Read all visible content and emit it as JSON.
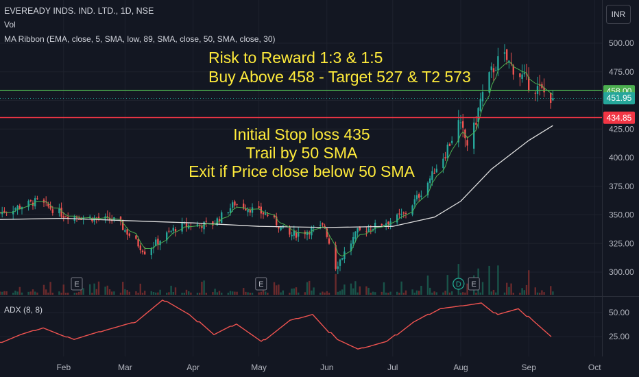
{
  "header": {
    "symbol": "EVEREADY INDS. IND. LTD., 1D, NSE",
    "vol": "Vol",
    "ma_ribbon": "MA Ribbon (EMA, close, 5, SMA, low, 89, SMA, close, 50, SMA, close, 30)",
    "adx": "ADX (8, 8)",
    "currency": "INR"
  },
  "annotations": {
    "line1": "Risk to Reward 1:3 & 1:5",
    "line2": "Buy Above 458 - Target 527 & T2 573",
    "line3": "Initial Stop loss 435",
    "line4": "Trail by 50 SMA",
    "line5": "Exit if Price close below 50 SMA"
  },
  "colors": {
    "background": "#131722",
    "up": "#26a69a",
    "down": "#ef5350",
    "buy_line": "#4caf50",
    "stop_line": "#f23645",
    "sma_line": "#e0e0e0",
    "ema_line": "#4caf50",
    "annotation": "#ffeb3b"
  },
  "chart_data": {
    "type": "candlestick",
    "price_axis": {
      "ticks": [
        300,
        325,
        350,
        375,
        400,
        425,
        450,
        475,
        500
      ],
      "tick_labels": [
        "300.00",
        "325.00",
        "350.00",
        "375.00",
        "400.00",
        "425.00",
        "450.00",
        "475.00",
        "500.00"
      ]
    },
    "x_axis": {
      "ticks": [
        "Feb",
        "Mar",
        "Apr",
        "May",
        "Jun",
        "Jul",
        "Aug",
        "Sep",
        "Oct"
      ]
    },
    "levels": [
      {
        "label": "458.00",
        "value": 458.0,
        "color": "#4caf50"
      },
      {
        "label": "434.85",
        "value": 434.85,
        "color": "#f23645"
      }
    ],
    "last_price": {
      "label": "451.95",
      "value": 451.95
    },
    "close_waypoints": [
      {
        "date": "2023-01-03",
        "close": 352
      },
      {
        "date": "2023-01-20",
        "close": 362
      },
      {
        "date": "2023-02-01",
        "close": 350
      },
      {
        "date": "2023-02-25",
        "close": 345
      },
      {
        "date": "2023-03-10",
        "close": 318
      },
      {
        "date": "2023-03-25",
        "close": 340
      },
      {
        "date": "2023-04-10",
        "close": 342
      },
      {
        "date": "2023-04-20",
        "close": 360
      },
      {
        "date": "2023-05-05",
        "close": 350
      },
      {
        "date": "2023-05-15",
        "close": 332
      },
      {
        "date": "2023-05-31",
        "close": 340
      },
      {
        "date": "2023-06-05",
        "close": 305
      },
      {
        "date": "2023-06-15",
        "close": 335
      },
      {
        "date": "2023-06-30",
        "close": 345
      },
      {
        "date": "2023-07-06",
        "close": 350
      },
      {
        "date": "2023-07-15",
        "close": 372
      },
      {
        "date": "2023-07-25",
        "close": 405
      },
      {
        "date": "2023-07-31",
        "close": 430
      },
      {
        "date": "2023-08-05",
        "close": 408
      },
      {
        "date": "2023-08-10",
        "close": 450
      },
      {
        "date": "2023-08-15",
        "close": 475
      },
      {
        "date": "2023-08-20",
        "close": 490
      },
      {
        "date": "2023-08-25",
        "close": 478
      },
      {
        "date": "2023-09-01",
        "close": 465
      },
      {
        "date": "2023-09-12",
        "close": 451.95
      }
    ],
    "sma_50": [
      {
        "date": "2023-01-03",
        "value": 346
      },
      {
        "date": "2023-02-01",
        "value": 347
      },
      {
        "date": "2023-03-01",
        "value": 345
      },
      {
        "date": "2023-04-01",
        "value": 343
      },
      {
        "date": "2023-05-01",
        "value": 340
      },
      {
        "date": "2023-06-01",
        "value": 339
      },
      {
        "date": "2023-07-01",
        "value": 340
      },
      {
        "date": "2023-07-20",
        "value": 348
      },
      {
        "date": "2023-08-01",
        "value": 362
      },
      {
        "date": "2023-08-15",
        "value": 390
      },
      {
        "date": "2023-09-01",
        "value": 415
      },
      {
        "date": "2023-09-12",
        "value": 428
      }
    ],
    "adx": {
      "ticks": [
        25,
        50
      ],
      "tick_labels": [
        "25.00",
        "50.00"
      ],
      "waypoints": [
        {
          "date": "2023-01-03",
          "value": 19
        },
        {
          "date": "2023-01-12",
          "value": 27
        },
        {
          "date": "2023-01-22",
          "value": 34
        },
        {
          "date": "2023-02-05",
          "value": 22
        },
        {
          "date": "2023-02-20",
          "value": 32
        },
        {
          "date": "2023-03-05",
          "value": 40
        },
        {
          "date": "2023-03-18",
          "value": 63
        },
        {
          "date": "2023-03-30",
          "value": 48
        },
        {
          "date": "2023-04-10",
          "value": 27
        },
        {
          "date": "2023-04-20",
          "value": 38
        },
        {
          "date": "2023-05-02",
          "value": 20
        },
        {
          "date": "2023-05-15",
          "value": 42
        },
        {
          "date": "2023-05-25",
          "value": 48
        },
        {
          "date": "2023-06-05",
          "value": 22
        },
        {
          "date": "2023-06-15",
          "value": 12
        },
        {
          "date": "2023-06-28",
          "value": 20
        },
        {
          "date": "2023-07-10",
          "value": 40
        },
        {
          "date": "2023-07-22",
          "value": 54
        },
        {
          "date": "2023-08-01",
          "value": 57
        },
        {
          "date": "2023-08-10",
          "value": 60
        },
        {
          "date": "2023-08-17",
          "value": 48
        },
        {
          "date": "2023-08-27",
          "value": 54
        },
        {
          "date": "2023-09-03",
          "value": 40
        },
        {
          "date": "2023-09-12",
          "value": 23
        }
      ]
    },
    "events": [
      {
        "label": "E",
        "date": "2023-02-07"
      },
      {
        "label": "E",
        "date": "2023-05-02"
      },
      {
        "label": "D",
        "date": "2023-07-31"
      },
      {
        "label": "E",
        "date": "2023-08-07"
      }
    ]
  }
}
